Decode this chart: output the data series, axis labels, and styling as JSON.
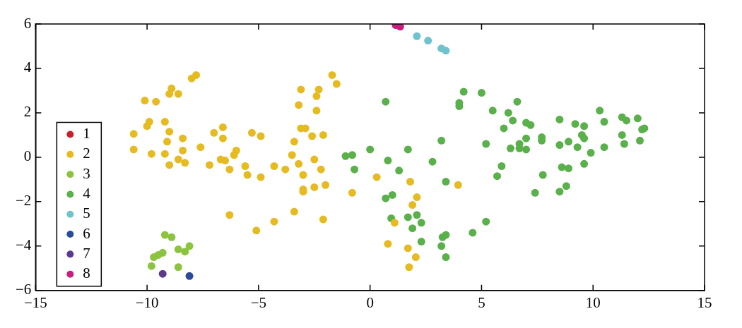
{
  "chart_data": {
    "type": "scatter",
    "xlim": [
      -15,
      15
    ],
    "ylim": [
      -6,
      6
    ],
    "xticks": [
      {
        "value": -15,
        "label": "−15"
      },
      {
        "value": -10,
        "label": "−10"
      },
      {
        "value": -5,
        "label": "−5"
      },
      0,
      5,
      10,
      15
    ],
    "yticks": [
      {
        "value": -6,
        "label": "−6"
      },
      {
        "value": -4,
        "label": "−4"
      },
      {
        "value": -2,
        "label": "−2"
      },
      0,
      2,
      4,
      6
    ],
    "grid": false,
    "legend": "bottom left",
    "marker": "circle",
    "series": [
      {
        "name": "1",
        "color": "#c8202a"
      },
      {
        "name": "2",
        "color": "#e6bb22",
        "x": [
          -10.6,
          -10.6,
          -10.1,
          -9.9,
          -10.0,
          -9.8,
          -9.6,
          -9.2,
          -9.0,
          -9.1,
          -9.2,
          -9.0,
          -8.9,
          -9.0,
          -8.6,
          -8.4,
          -8.4,
          -8.6,
          -8.3,
          -8.0,
          -7.8,
          -7.6,
          -7.2,
          -7.0,
          -6.7,
          -6.5,
          -6.6,
          -6.6,
          -6.3,
          -6.0,
          -6.1,
          -5.6,
          -5.5,
          -5.3,
          -4.9,
          -4.9,
          -6.3,
          -5.1,
          -4.3,
          -4.3,
          -3.8,
          -3.5,
          -3.4,
          -3.4,
          -3.2,
          -3.1,
          -3.1,
          -3.2,
          -2.9,
          -3.0,
          -3.0,
          -3.0,
          -2.6,
          -2.5,
          -2.5,
          -2.4,
          -2.4,
          -2.3,
          -2.2,
          -2.1,
          -2.0,
          -2.1,
          -1.7,
          -1.5,
          -0.8,
          0.3,
          0.8,
          1.1,
          1.8,
          1.9,
          2.1,
          1.7,
          1.75,
          2.05,
          3.95
        ],
        "values": [
          1.05,
          0.35,
          2.55,
          1.6,
          1.4,
          0.15,
          2.5,
          1.6,
          1.15,
          0.7,
          0.15,
          -0.35,
          3.1,
          2.85,
          2.85,
          0.85,
          0.3,
          -0.1,
          -0.25,
          3.55,
          3.7,
          0.45,
          -0.35,
          1.1,
          -0.1,
          -0.15,
          1.35,
          0.85,
          -0.55,
          0.3,
          0.1,
          -0.4,
          -0.8,
          1.1,
          0.95,
          -0.9,
          -2.6,
          -3.3,
          -2.9,
          -0.4,
          -0.55,
          0.1,
          0.7,
          -2.45,
          -0.3,
          3.05,
          1.3,
          2.35,
          1.3,
          -0.8,
          -1.45,
          -1.55,
          0.95,
          -0.1,
          -1.35,
          2.1,
          2.75,
          3.05,
          -0.55,
          1.0,
          -1.25,
          -2.8,
          3.7,
          3.3,
          -1.6,
          -0.9,
          -3.9,
          -2.95,
          -1.1,
          -2.15,
          -1.8,
          -4.1,
          -4.95,
          -4.5,
          -1.25
        ]
      },
      {
        "name": "3",
        "color": "#8cc43f",
        "x": [
          -9.2,
          -8.9,
          -9.3,
          -9.5,
          -9.7,
          -8.6,
          -8.1,
          -8.3,
          -9.8,
          -8.6
        ],
        "values": [
          -3.5,
          -3.6,
          -4.3,
          -4.4,
          -4.5,
          -4.15,
          -4.0,
          -4.25,
          -4.9,
          -4.95
        ]
      },
      {
        "name": "4",
        "color": "#5ab04a",
        "x": [
          0.7,
          -1.1,
          -0.8,
          -0.7,
          0.0,
          0.8,
          1.7,
          1.3,
          3.2,
          2.8,
          3.4,
          0.7,
          1.0,
          2.1,
          1.7,
          0.95,
          1.9,
          2.3,
          3.2,
          3.25,
          3.4,
          2.3,
          3.4,
          4.6,
          5.2,
          4.0,
          4.0,
          4.2,
          5.0,
          5.5,
          5.2,
          6.0,
          6.2,
          6.4,
          6.6,
          5.7,
          5.9,
          6.3,
          6.7,
          6.7,
          7.0,
          7.0,
          7.0,
          7.2,
          7.4,
          7.7,
          7.7,
          7.75,
          8.5,
          8.5,
          8.6,
          8.5,
          8.8,
          8.9,
          8.9,
          9.2,
          9.3,
          9.5,
          9.6,
          9.6,
          9.6,
          9.9,
          10.3,
          10.5,
          10.5,
          11.3,
          11.3,
          11.4,
          11.5,
          12.0,
          12.1,
          12.2,
          12.3
        ],
        "values": [
          2.5,
          0.05,
          0.1,
          -0.55,
          0.35,
          -0.15,
          0.35,
          -0.6,
          0.75,
          -0.2,
          -1.1,
          -1.85,
          -1.7,
          -2.6,
          -2.7,
          -2.75,
          -3.2,
          -2.95,
          -4.0,
          -3.6,
          -3.5,
          -3.8,
          -4.5,
          -3.4,
          -2.9,
          2.3,
          2.45,
          2.95,
          2.9,
          2.1,
          0.6,
          1.3,
          2.0,
          1.65,
          2.5,
          -0.85,
          -0.4,
          0.4,
          0.4,
          0.6,
          0.35,
          0.85,
          1.55,
          1.45,
          -1.6,
          0.9,
          0.75,
          -0.8,
          1.7,
          0.55,
          -0.45,
          -1.55,
          -1.3,
          -0.5,
          0.7,
          1.5,
          0.45,
          1.0,
          1.4,
          0.85,
          -0.3,
          0.2,
          2.1,
          1.6,
          0.45,
          1.8,
          1.0,
          0.6,
          1.65,
          1.75,
          0.75,
          1.25,
          1.3
        ]
      },
      {
        "name": "5",
        "color": "#6fc3cc",
        "x": [
          2.1,
          2.6,
          3.2,
          3.4
        ],
        "values": [
          5.45,
          5.25,
          4.9,
          4.8
        ]
      },
      {
        "name": "6",
        "color": "#2a4a9a",
        "x": [
          -8.1
        ],
        "values": [
          -5.35
        ]
      },
      {
        "name": "7",
        "color": "#5b3a8c",
        "x": [
          -9.3
        ],
        "values": [
          -5.25
        ]
      },
      {
        "name": "8",
        "color": "#c81e7e",
        "x": [
          1.15,
          1.35
        ],
        "values": [
          5.95,
          5.88
        ]
      }
    ]
  }
}
